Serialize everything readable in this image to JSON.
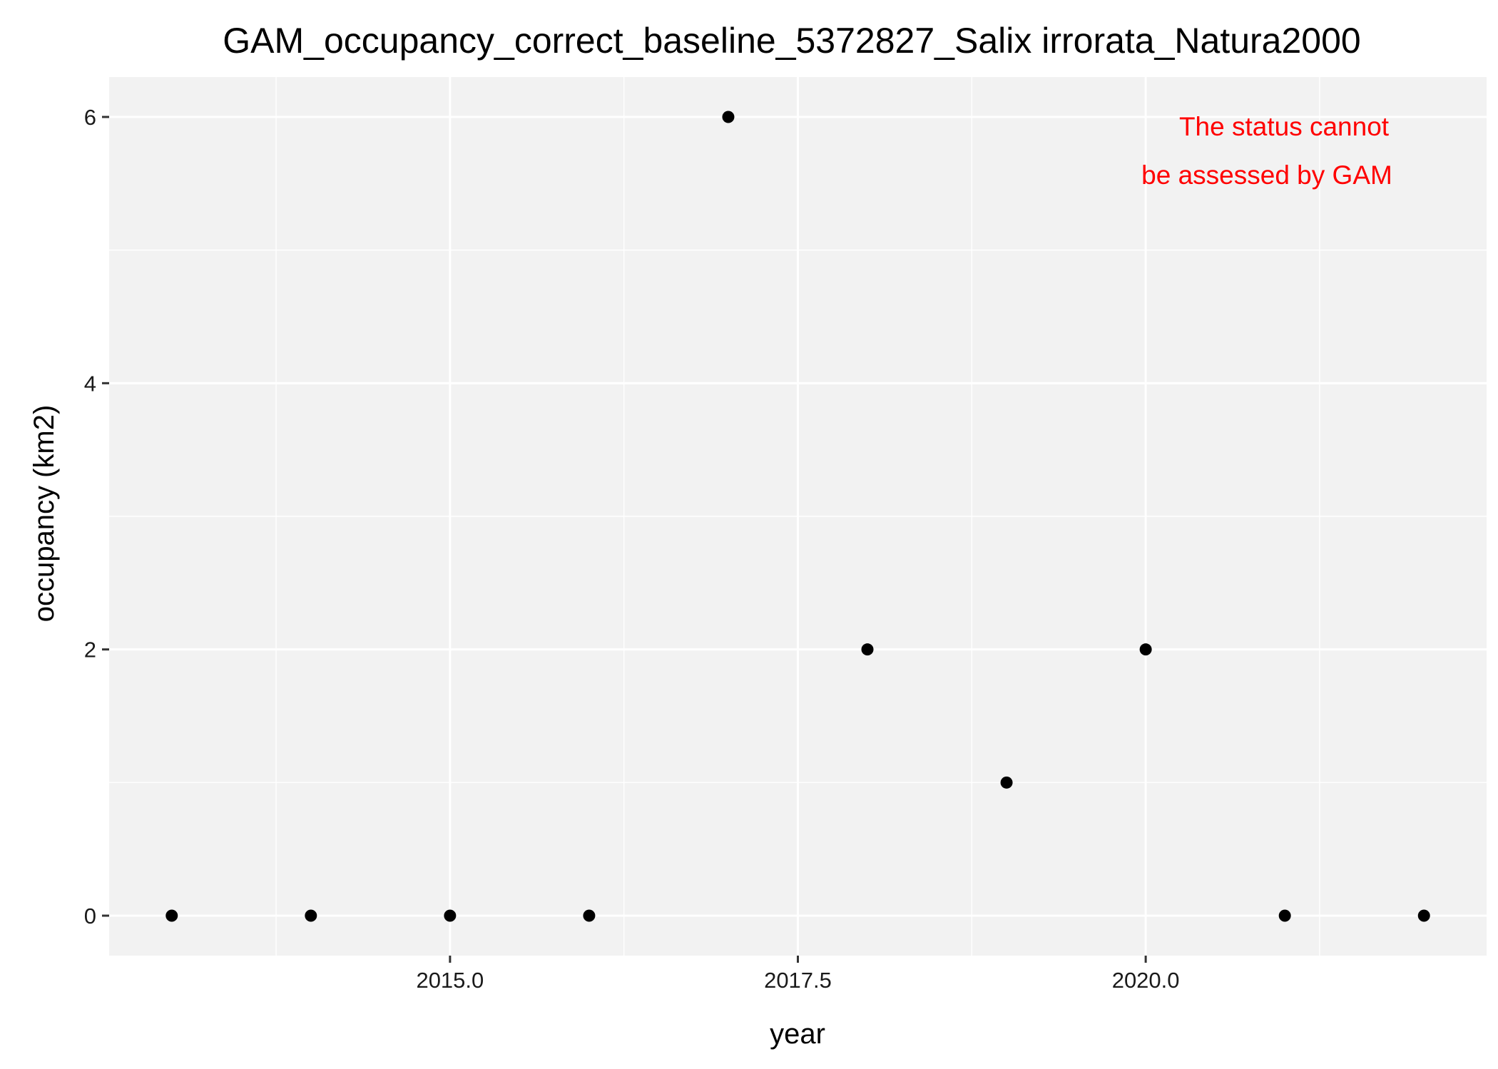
{
  "chart_data": {
    "type": "scatter",
    "title": "GAM_occupancy_correct_baseline_5372827_Salix irrorata_Natura2000",
    "xlabel": "year",
    "ylabel": "occupancy (km2)",
    "x": [
      2013,
      2014,
      2015,
      2016,
      2017,
      2018,
      2019,
      2020,
      2021,
      2022
    ],
    "y": [
      0,
      0,
      0,
      0,
      6,
      2,
      1,
      2,
      0,
      0
    ],
    "xlim": [
      2012.55,
      2022.45
    ],
    "ylim": [
      -0.3,
      6.3
    ],
    "x_ticks": [
      2015.0,
      2017.5,
      2020.0
    ],
    "x_tick_labels": [
      "2015.0",
      "2017.5",
      "2020.0"
    ],
    "y_ticks": [
      0,
      2,
      4,
      6
    ],
    "y_tick_labels": [
      "0",
      "2",
      "4",
      "6"
    ],
    "grid": true,
    "annotation": {
      "lines": [
        "The status cannot",
        "be assessed by GAM"
      ],
      "color": "#ff0000"
    },
    "colors": {
      "panel_background": "#f2f2f2",
      "grid": "#ffffff",
      "point": "#000000"
    }
  }
}
